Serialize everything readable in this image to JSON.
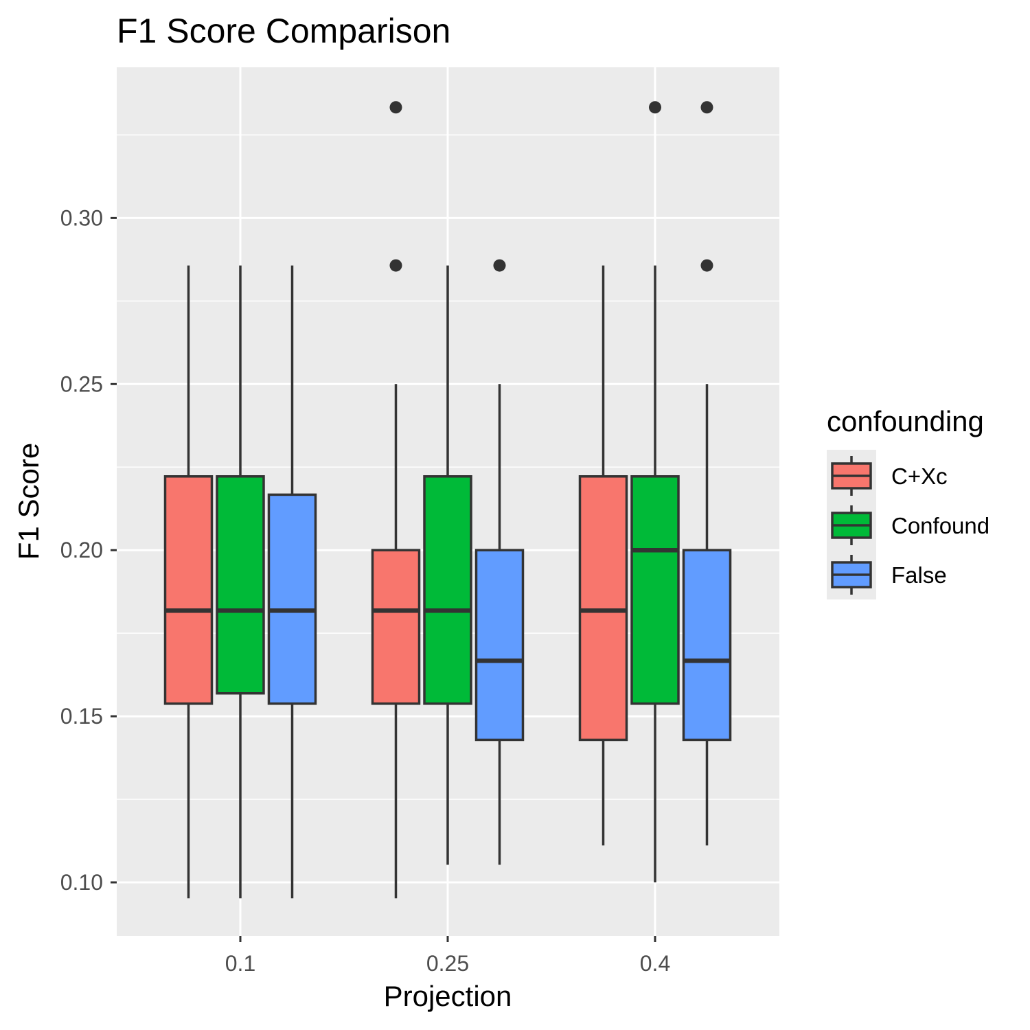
{
  "chart_data": {
    "type": "boxplot",
    "title": "F1 Score Comparison",
    "xlabel": "Projection",
    "ylabel": "F1 Score",
    "categories": [
      "0.1",
      "0.25",
      "0.4"
    ],
    "ylim": [
      0.083,
      0.345
    ],
    "yticks": [
      0.1,
      0.15,
      0.2,
      0.25,
      0.3
    ],
    "ytick_labels": [
      "0.10",
      "0.15",
      "0.20",
      "0.25",
      "0.30"
    ],
    "grid": true,
    "legend": {
      "title": "confounding",
      "position": "right"
    },
    "series": [
      {
        "name": "C+Xc",
        "color": "#F8766D",
        "boxes": [
          {
            "category": "0.1",
            "min": 0.0952,
            "q1": 0.1538,
            "median": 0.1818,
            "q3": 0.2222,
            "max": 0.2857,
            "outliers": []
          },
          {
            "category": "0.25",
            "min": 0.0952,
            "q1": 0.1538,
            "median": 0.1818,
            "q3": 0.2,
            "max": 0.25,
            "outliers": [
              0.2857,
              0.3333
            ]
          },
          {
            "category": "0.4",
            "min": 0.1111,
            "q1": 0.1429,
            "median": 0.1818,
            "q3": 0.2222,
            "max": 0.2857,
            "outliers": []
          }
        ]
      },
      {
        "name": "Confound",
        "color": "#00BA38",
        "boxes": [
          {
            "category": "0.1",
            "min": 0.0952,
            "q1": 0.1569,
            "median": 0.1818,
            "q3": 0.2222,
            "max": 0.2857,
            "outliers": []
          },
          {
            "category": "0.25",
            "min": 0.1053,
            "q1": 0.1538,
            "median": 0.1818,
            "q3": 0.2222,
            "max": 0.2857,
            "outliers": []
          },
          {
            "category": "0.4",
            "min": 0.1,
            "q1": 0.1538,
            "median": 0.2,
            "q3": 0.2222,
            "max": 0.2857,
            "outliers": [
              0.3333
            ]
          }
        ]
      },
      {
        "name": "False",
        "color": "#619CFF",
        "boxes": [
          {
            "category": "0.1",
            "min": 0.0952,
            "q1": 0.1538,
            "median": 0.1818,
            "q3": 0.2167,
            "max": 0.2857,
            "outliers": []
          },
          {
            "category": "0.25",
            "min": 0.1053,
            "q1": 0.1429,
            "median": 0.1667,
            "q3": 0.2,
            "max": 0.25,
            "outliers": [
              0.2857
            ]
          },
          {
            "category": "0.4",
            "min": 0.1111,
            "q1": 0.1429,
            "median": 0.1667,
            "q3": 0.2,
            "max": 0.25,
            "outliers": [
              0.2857,
              0.3333
            ]
          }
        ]
      }
    ],
    "colors": {
      "panel_background": "#EBEBEB",
      "grid_major": "#FFFFFF",
      "box_outline": "#333333"
    }
  }
}
